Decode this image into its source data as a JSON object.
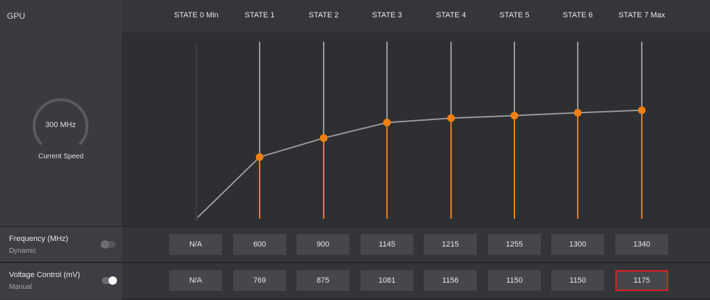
{
  "header": {
    "gpu_label": "GPU",
    "states": [
      "STATE 0 Min",
      "STATE 1",
      "STATE 2",
      "STATE 3",
      "STATE 4",
      "STATE 5",
      "STATE 6",
      "STATE 7 Max"
    ]
  },
  "gauge": {
    "value_label": "300 MHz",
    "caption": "Current Speed"
  },
  "frequency_row": {
    "title": "Frequency (MHz)",
    "mode": "Dynamic",
    "toggle_on": false,
    "values": [
      "N/A",
      "600",
      "900",
      "1145",
      "1215",
      "1255",
      "1300",
      "1340"
    ]
  },
  "voltage_row": {
    "title": "Voltage Control (mV)",
    "mode": "Manual",
    "toggle_on": true,
    "values": [
      "N/A",
      "769",
      "875",
      "1081",
      "1156",
      "1150",
      "1150",
      "1175"
    ],
    "highlighted_state_index": 7
  },
  "colors": {
    "accent": "#f08012",
    "line": "#9a9a9a",
    "highlight_border": "#e02020"
  }
}
